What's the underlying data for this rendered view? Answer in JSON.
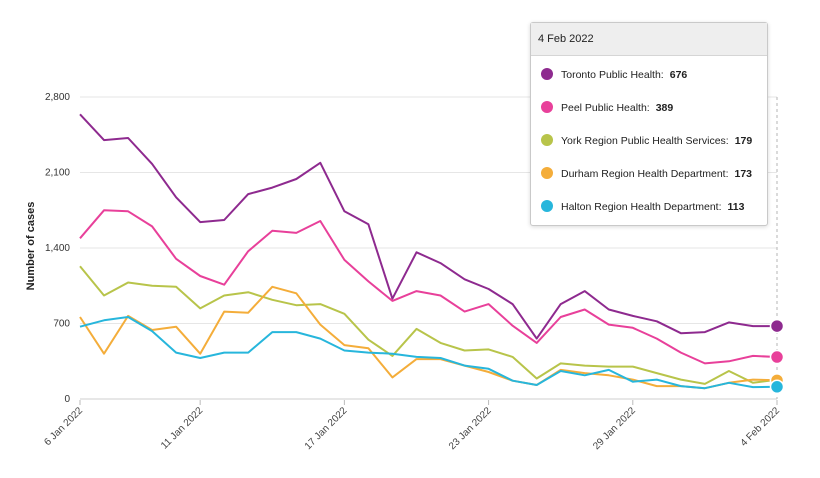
{
  "chart_data": {
    "type": "line",
    "ylabel": "Number of cases",
    "ylim": [
      0,
      2800
    ],
    "yticks": [
      {
        "value": 0,
        "label": "0"
      },
      {
        "value": 700,
        "label": "700"
      },
      {
        "value": 1400,
        "label": "1,400"
      },
      {
        "value": 2100,
        "label": "2,100"
      },
      {
        "value": 2800,
        "label": "2,800"
      }
    ],
    "xticks": [
      {
        "index": 0,
        "label": "6 Jan 2022"
      },
      {
        "index": 5,
        "label": "11 Jan 2022"
      },
      {
        "index": 11,
        "label": "17 Jan 2022"
      },
      {
        "index": 17,
        "label": "23 Jan 2022"
      },
      {
        "index": 23,
        "label": "29 Jan 2022"
      },
      {
        "index": 29,
        "label": "4 Feb 2022"
      }
    ],
    "series": [
      {
        "name": "Toronto Public Health",
        "color": "#8e2a8f",
        "values": [
          2640,
          2400,
          2420,
          2180,
          1870,
          1640,
          1660,
          1900,
          1960,
          2040,
          2190,
          1740,
          1620,
          930,
          1360,
          1260,
          1110,
          1020,
          880,
          560,
          880,
          1000,
          830,
          770,
          720,
          610,
          620,
          710,
          676,
          676
        ]
      },
      {
        "name": "Peel Public Health",
        "color": "#e8409a",
        "values": [
          1490,
          1750,
          1740,
          1600,
          1300,
          1140,
          1060,
          1370,
          1560,
          1540,
          1650,
          1290,
          1090,
          910,
          1000,
          960,
          810,
          880,
          680,
          520,
          760,
          830,
          690,
          660,
          560,
          430,
          330,
          350,
          400,
          389
        ]
      },
      {
        "name": "York Region Public Health Services",
        "color": "#b8c44a",
        "values": [
          1230,
          960,
          1080,
          1050,
          1040,
          840,
          960,
          990,
          920,
          870,
          880,
          790,
          550,
          400,
          650,
          520,
          450,
          460,
          390,
          190,
          330,
          310,
          300,
          300,
          240,
          180,
          140,
          260,
          150,
          179
        ]
      },
      {
        "name": "Durham Region Health Department",
        "color": "#f4ad3a",
        "values": [
          760,
          420,
          770,
          640,
          670,
          420,
          810,
          800,
          1040,
          980,
          690,
          500,
          470,
          200,
          370,
          370,
          310,
          250,
          170,
          130,
          270,
          240,
          220,
          180,
          120,
          120,
          100,
          150,
          180,
          173
        ]
      },
      {
        "name": "Halton Region Health Department",
        "color": "#27b6dc",
        "values": [
          670,
          730,
          760,
          630,
          430,
          380,
          430,
          430,
          620,
          620,
          560,
          450,
          430,
          420,
          390,
          380,
          310,
          280,
          170,
          130,
          260,
          220,
          270,
          160,
          180,
          120,
          100,
          150,
          110,
          113
        ]
      }
    ]
  },
  "tooltip": {
    "date": "4 Feb 2022",
    "rows": [
      {
        "name": "Toronto Public Health:",
        "value": "676",
        "color": "#8e2a8f"
      },
      {
        "name": "Peel Public Health:",
        "value": "389",
        "color": "#e8409a"
      },
      {
        "name": "York Region Public Health Services:",
        "value": "179",
        "color": "#b8c44a"
      },
      {
        "name": "Durham Region Health Department:",
        "value": "173",
        "color": "#f4ad3a"
      },
      {
        "name": "Halton Region Health Department:",
        "value": "113",
        "color": "#27b6dc"
      }
    ]
  }
}
